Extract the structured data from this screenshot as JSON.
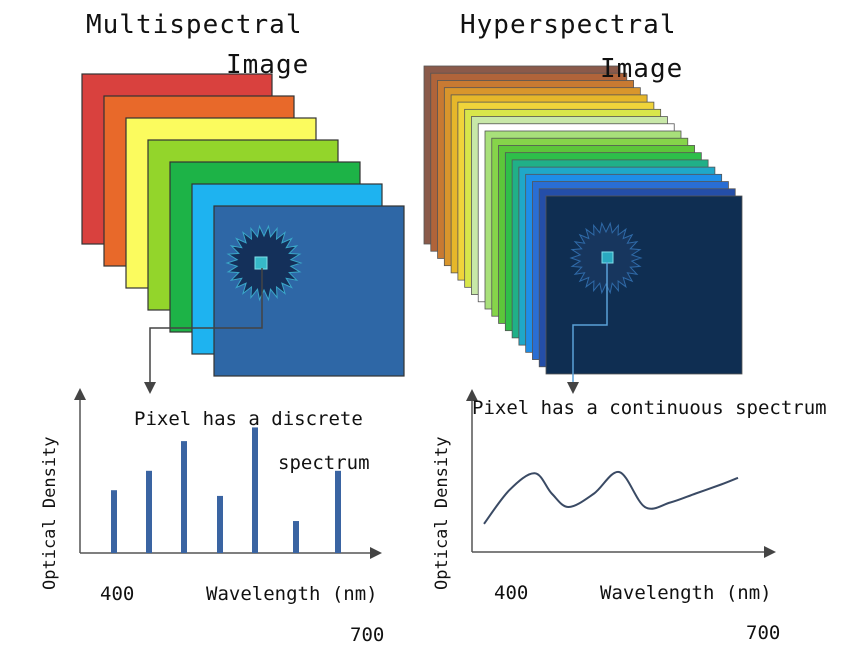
{
  "left_panel": {
    "title_line1": "Multispectral",
    "title_line2": "Image",
    "annotation_line1": "Pixel has a discrete",
    "annotation_line2": "spectrum",
    "ylabel": "Optical Density",
    "xlabel": "Wavelength (nm)",
    "x_start": "400",
    "x_end": "700",
    "layer_colors": [
      "#d9413e",
      "#e8692a",
      "#fbfb5e",
      "#93d52b",
      "#1db347",
      "#1eb3f0",
      "#2e67a6"
    ]
  },
  "right_panel": {
    "title_line1": "Hyperspectral",
    "title_line2": "Image",
    "annotation": "Pixel has a continuous spectrum",
    "ylabel": "Optical Density",
    "xlabel": "Wavelength (nm)",
    "x_start": "400",
    "x_end": "700",
    "layer_colors": [
      "#8a5a4a",
      "#b0643a",
      "#c87a32",
      "#d9962c",
      "#e6b72a",
      "#f0d43a",
      "#d8e64a",
      "#c8e8a8",
      "#ffffff",
      "#a8e07a",
      "#86d44a",
      "#5cc63a",
      "#2ebf4a",
      "#20b088",
      "#1fa8c8",
      "#1e8ee8",
      "#2a6ed4",
      "#244ea8",
      "#0f2e52"
    ]
  },
  "chart_data": [
    {
      "type": "bar",
      "title": "",
      "xlabel": "Wavelength (nm)",
      "ylabel": "Optical Density",
      "x": [
        400,
        450,
        500,
        550,
        600,
        650,
        700
      ],
      "values": [
        0.55,
        0.72,
        0.98,
        0.5,
        1.1,
        0.28,
        0.72
      ],
      "ylim": [
        0,
        1.2
      ],
      "grid": false
    },
    {
      "type": "line",
      "title": "",
      "xlabel": "Wavelength (nm)",
      "ylabel": "Optical Density",
      "x": [
        400,
        430,
        460,
        480,
        500,
        530,
        560,
        590,
        620,
        650,
        680,
        700
      ],
      "y": [
        0.25,
        0.55,
        0.7,
        0.52,
        0.4,
        0.52,
        0.71,
        0.4,
        0.44,
        0.52,
        0.6,
        0.66
      ],
      "ylim": [
        0,
        1.2
      ],
      "grid": false
    }
  ]
}
